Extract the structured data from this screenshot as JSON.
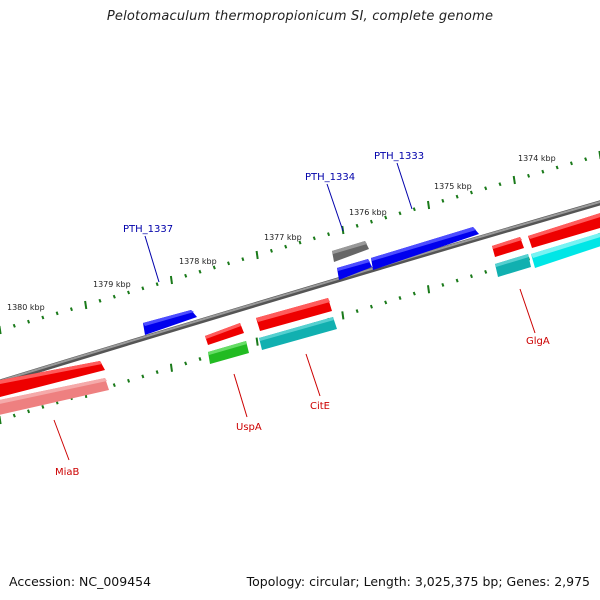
{
  "title": "Pelotomaculum thermopropionicum SI, complete genome",
  "footer": {
    "accession": "Accession: NC_009454",
    "info": "Topology: circular; Length: 3,025,375 bp; Genes: 2,975"
  },
  "scale_labels": [
    "1380 kbp",
    "1379 kbp",
    "1378 kbp",
    "1377 kbp",
    "1376 kbp",
    "1375 kbp",
    "1374 kbp"
  ],
  "forward_genes": [
    "PTH_1337",
    "PTH_1334",
    "PTH_1333"
  ],
  "reverse_genes": [
    "MiaB",
    "UspA",
    "CitE",
    "GlgA"
  ],
  "colors": {
    "backbone": "#777777",
    "forward_label": "#0000aa",
    "reverse_label": "#cc0000",
    "tick": "#1a7a1a",
    "blue": "#0000ee",
    "red": "#ee0000",
    "gray": "#666666",
    "pink": "#ee8080",
    "green": "#22bb22",
    "teal": "#11b0b0",
    "cyan": "#00e6e6"
  }
}
